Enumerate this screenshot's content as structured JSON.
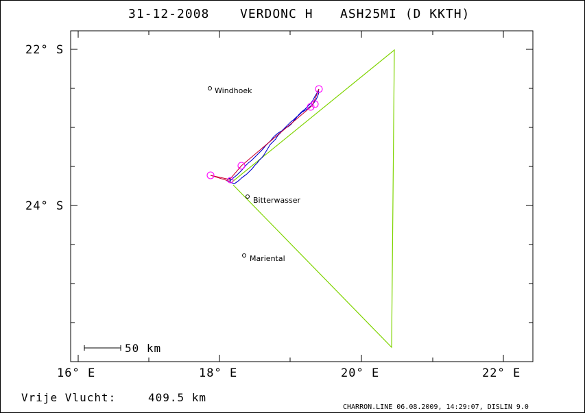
{
  "header": {
    "date": "31-12-2008",
    "pilot": "VERDONC H",
    "glider": "ASH25MI (D KKTH)"
  },
  "map": {
    "x_ticks": [
      {
        "label": "16° E"
      },
      {
        "label": "18° E"
      },
      {
        "label": "20° E"
      },
      {
        "label": "22° E"
      }
    ],
    "y_ticks": [
      {
        "label": "22° S"
      },
      {
        "label": "24° S"
      }
    ],
    "places": [
      {
        "name": "Windhoek"
      },
      {
        "name": "Bitterwasser"
      },
      {
        "name": "Mariental"
      }
    ],
    "scale_label": "50 km",
    "colors": {
      "task": "#7fd400",
      "track": "#0000cc",
      "optimized": "#cc0033",
      "turnpoint": "#ff00ff"
    }
  },
  "footer": {
    "distance_label": "Vrije Vlucht:",
    "distance_value": "409.5 km",
    "credit": "CHARRON.LINE 06.08.2009, 14:29:07, DISLIN 9.0"
  }
}
